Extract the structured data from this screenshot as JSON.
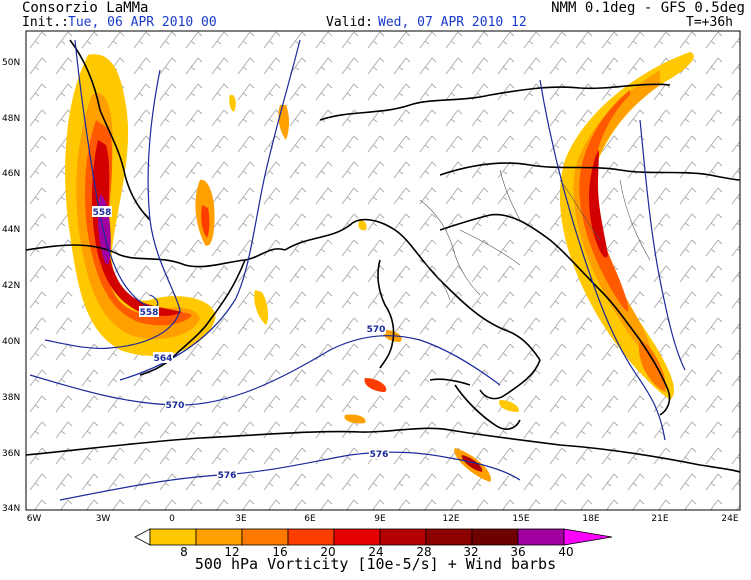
{
  "header": {
    "org": "Consorzio LaMMa",
    "model": "NMM 0.1deg - GFS 0.5deg",
    "init_label": "Init.:",
    "init_value": "Tue, 06 APR 2010  00",
    "valid_label": "Valid:",
    "valid_value": "Wed, 07 APR 2010  12",
    "lead": "T=+36h"
  },
  "map": {
    "lon_ticks": [
      "6W",
      "3W",
      "0",
      "3E",
      "6E",
      "9E",
      "12E",
      "15E",
      "18E",
      "21E",
      "24E"
    ],
    "lat_ticks": [
      "50N",
      "48N",
      "46N",
      "44N",
      "42N",
      "40N",
      "38N",
      "36N",
      "34N"
    ],
    "isolines": [
      "558",
      "558",
      "564",
      "570",
      "570",
      "576",
      "576"
    ],
    "colors": {
      "isoline": "#1a2a9a",
      "coast": "#000000",
      "barbs": "#9a9a9a"
    }
  },
  "colorbar": {
    "labels": [
      "8",
      "12",
      "16",
      "20",
      "24",
      "28",
      "32",
      "36",
      "40"
    ],
    "colors": [
      "#ffc800",
      "#ffa000",
      "#ff7800",
      "#ff3c00",
      "#e60000",
      "#b40000",
      "#8c0000",
      "#a000a0",
      "#ff00ff"
    ],
    "title": "500 hPa Vorticity [10e-5/s] + Wind barbs"
  }
}
